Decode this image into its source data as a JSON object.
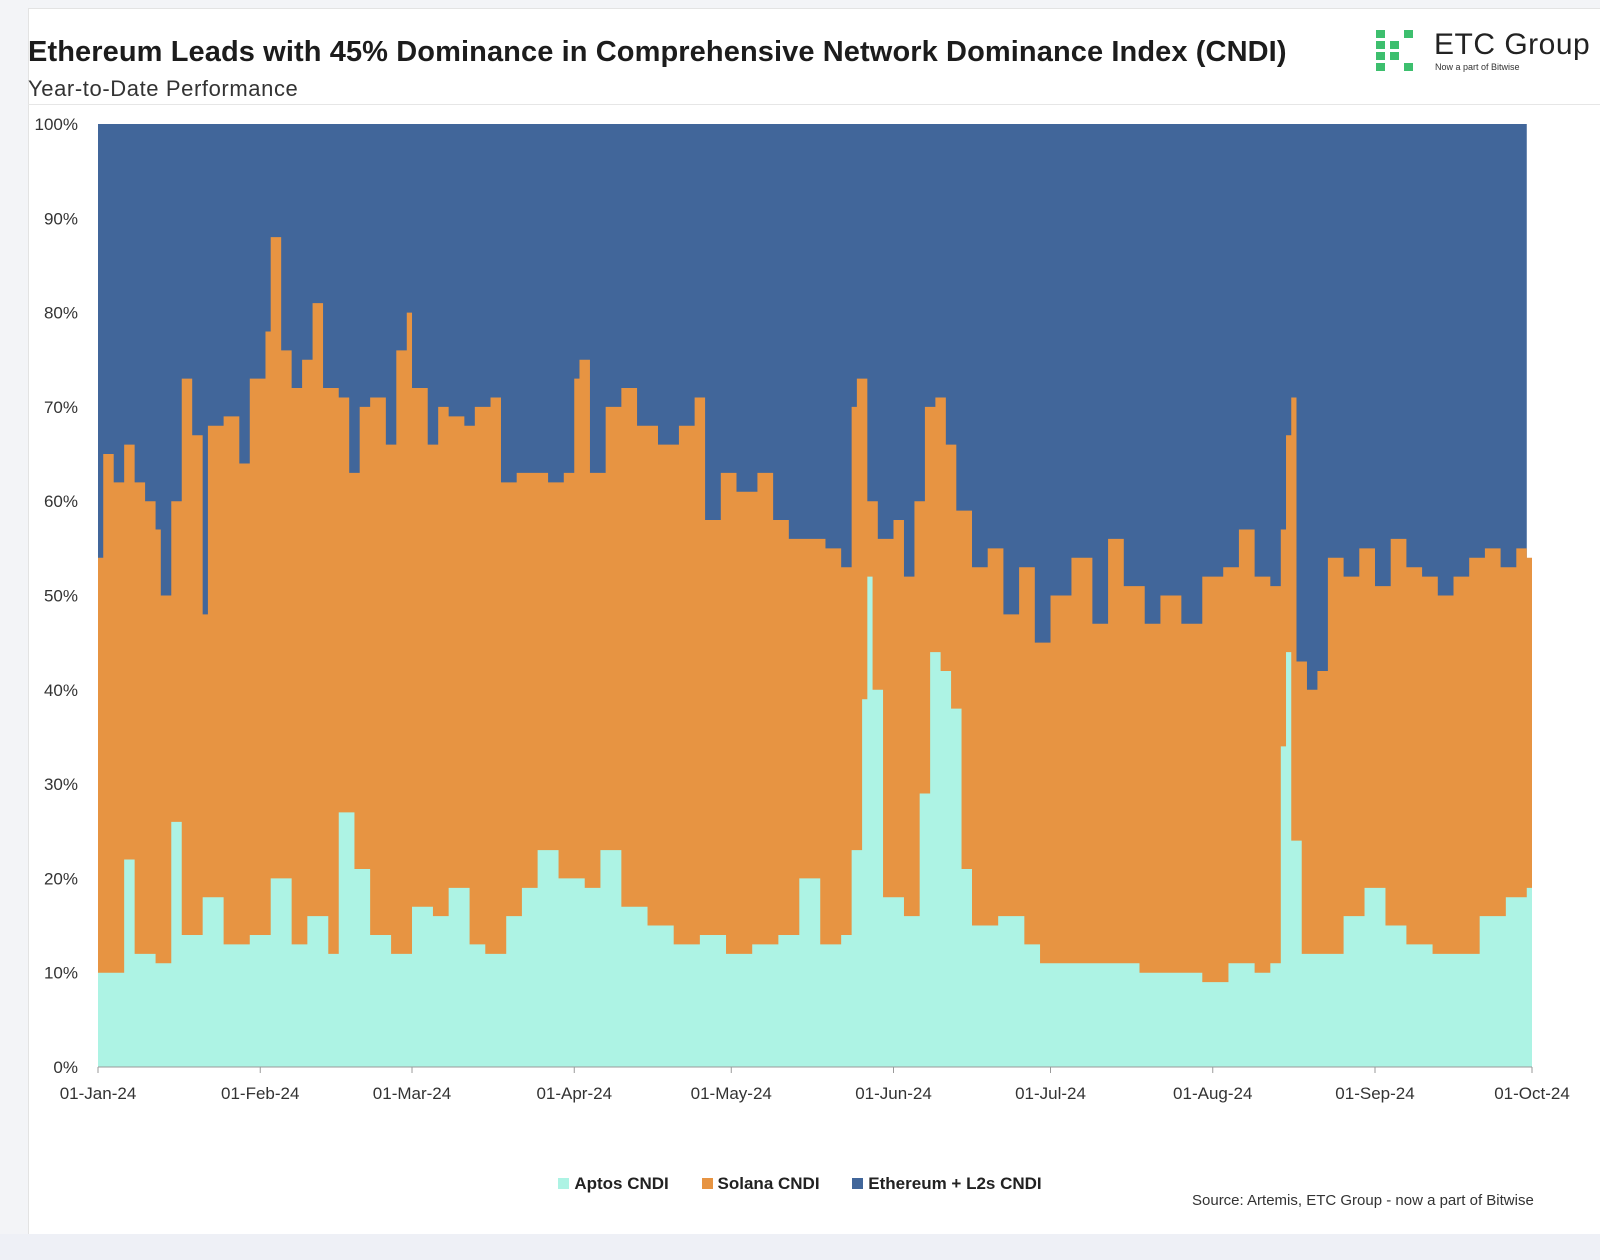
{
  "header": {
    "title": "Ethereum Leads with 45% Dominance in Comprehensive Network Dominance Index (CNDI)",
    "subtitle": "Year-to-Date Performance"
  },
  "logo": {
    "name": "ETC Group",
    "tagline": "Now a part of Bitwise",
    "accent_color": "#3dbf6e"
  },
  "source": "Source: Artemis, ETC Group - now a part of Bitwise",
  "colors": {
    "aptos": "#adf3e4",
    "solana": "#e79442",
    "ethereum": "#41669a"
  },
  "chart_data": {
    "type": "area",
    "stacked": true,
    "title": "Ethereum Leads with 45% Dominance in Comprehensive Network Dominance Index (CNDI)",
    "subtitle": "Year-to-Date Performance",
    "xlabel": "",
    "ylabel": "",
    "ylim": [
      0,
      100
    ],
    "y_ticks": [
      "0%",
      "10%",
      "20%",
      "30%",
      "40%",
      "50%",
      "60%",
      "70%",
      "80%",
      "90%",
      "100%"
    ],
    "x_range": [
      "2024-01-01",
      "2024-10-01"
    ],
    "x_ticks": [
      "01-Jan-24",
      "01-Feb-24",
      "01-Mar-24",
      "01-Apr-24",
      "01-May-24",
      "01-Jun-24",
      "01-Jul-24",
      "01-Aug-24",
      "01-Sep-24",
      "01-Oct-24"
    ],
    "legend_position": "bottom",
    "grid": false,
    "series": [
      {
        "name": "Aptos CNDI",
        "color": "#adf3e4",
        "points": [
          [
            "2024-01-01",
            10
          ],
          [
            "2024-01-06",
            22
          ],
          [
            "2024-01-08",
            12
          ],
          [
            "2024-01-12",
            11
          ],
          [
            "2024-01-15",
            26
          ],
          [
            "2024-01-17",
            14
          ],
          [
            "2024-01-21",
            18
          ],
          [
            "2024-01-25",
            13
          ],
          [
            "2024-01-30",
            14
          ],
          [
            "2024-02-03",
            20
          ],
          [
            "2024-02-07",
            13
          ],
          [
            "2024-02-10",
            16
          ],
          [
            "2024-02-14",
            12
          ],
          [
            "2024-02-16",
            27
          ],
          [
            "2024-02-19",
            21
          ],
          [
            "2024-02-22",
            14
          ],
          [
            "2024-02-26",
            12
          ],
          [
            "2024-03-01",
            17
          ],
          [
            "2024-03-05",
            16
          ],
          [
            "2024-03-08",
            19
          ],
          [
            "2024-03-12",
            13
          ],
          [
            "2024-03-15",
            12
          ],
          [
            "2024-03-19",
            16
          ],
          [
            "2024-03-22",
            19
          ],
          [
            "2024-03-25",
            23
          ],
          [
            "2024-03-29",
            20
          ],
          [
            "2024-04-03",
            19
          ],
          [
            "2024-04-06",
            23
          ],
          [
            "2024-04-10",
            17
          ],
          [
            "2024-04-15",
            15
          ],
          [
            "2024-04-20",
            13
          ],
          [
            "2024-04-25",
            14
          ],
          [
            "2024-04-30",
            12
          ],
          [
            "2024-05-05",
            13
          ],
          [
            "2024-05-10",
            14
          ],
          [
            "2024-05-14",
            20
          ],
          [
            "2024-05-18",
            13
          ],
          [
            "2024-05-22",
            14
          ],
          [
            "2024-05-24",
            23
          ],
          [
            "2024-05-26",
            39
          ],
          [
            "2024-05-27",
            52
          ],
          [
            "2024-05-28",
            40
          ],
          [
            "2024-05-30",
            18
          ],
          [
            "2024-06-03",
            16
          ],
          [
            "2024-06-06",
            29
          ],
          [
            "2024-06-08",
            44
          ],
          [
            "2024-06-10",
            42
          ],
          [
            "2024-06-12",
            38
          ],
          [
            "2024-06-14",
            21
          ],
          [
            "2024-06-16",
            15
          ],
          [
            "2024-06-21",
            16
          ],
          [
            "2024-06-26",
            13
          ],
          [
            "2024-06-29",
            11
          ],
          [
            "2024-07-05",
            11
          ],
          [
            "2024-07-12",
            11
          ],
          [
            "2024-07-18",
            10
          ],
          [
            "2024-07-24",
            10
          ],
          [
            "2024-07-30",
            9
          ],
          [
            "2024-08-04",
            11
          ],
          [
            "2024-08-09",
            10
          ],
          [
            "2024-08-12",
            11
          ],
          [
            "2024-08-14",
            34
          ],
          [
            "2024-08-15",
            44
          ],
          [
            "2024-08-16",
            24
          ],
          [
            "2024-08-18",
            12
          ],
          [
            "2024-08-22",
            12
          ],
          [
            "2024-08-26",
            16
          ],
          [
            "2024-08-30",
            19
          ],
          [
            "2024-09-03",
            15
          ],
          [
            "2024-09-07",
            13
          ],
          [
            "2024-09-12",
            12
          ],
          [
            "2024-09-17",
            12
          ],
          [
            "2024-09-21",
            16
          ],
          [
            "2024-09-26",
            18
          ],
          [
            "2024-09-30",
            19
          ]
        ]
      },
      {
        "name": "Solana CNDI",
        "color": "#e79442",
        "points": [
          [
            "2024-01-01",
            54
          ],
          [
            "2024-01-02",
            65
          ],
          [
            "2024-01-04",
            62
          ],
          [
            "2024-01-06",
            66
          ],
          [
            "2024-01-08",
            62
          ],
          [
            "2024-01-10",
            60
          ],
          [
            "2024-01-12",
            57
          ],
          [
            "2024-01-13",
            50
          ],
          [
            "2024-01-15",
            60
          ],
          [
            "2024-01-17",
            73
          ],
          [
            "2024-01-19",
            67
          ],
          [
            "2024-01-21",
            48
          ],
          [
            "2024-01-22",
            68
          ],
          [
            "2024-01-25",
            69
          ],
          [
            "2024-01-28",
            64
          ],
          [
            "2024-01-30",
            73
          ],
          [
            "2024-02-02",
            78
          ],
          [
            "2024-02-03",
            88
          ],
          [
            "2024-02-05",
            76
          ],
          [
            "2024-02-07",
            72
          ],
          [
            "2024-02-09",
            75
          ],
          [
            "2024-02-11",
            81
          ],
          [
            "2024-02-13",
            72
          ],
          [
            "2024-02-16",
            71
          ],
          [
            "2024-02-18",
            63
          ],
          [
            "2024-02-20",
            70
          ],
          [
            "2024-02-22",
            71
          ],
          [
            "2024-02-25",
            66
          ],
          [
            "2024-02-27",
            76
          ],
          [
            "2024-02-29",
            80
          ],
          [
            "2024-03-01",
            72
          ],
          [
            "2024-03-04",
            66
          ],
          [
            "2024-03-06",
            70
          ],
          [
            "2024-03-08",
            69
          ],
          [
            "2024-03-11",
            68
          ],
          [
            "2024-03-13",
            70
          ],
          [
            "2024-03-16",
            71
          ],
          [
            "2024-03-18",
            62
          ],
          [
            "2024-03-21",
            63
          ],
          [
            "2024-03-24",
            63
          ],
          [
            "2024-03-27",
            62
          ],
          [
            "2024-03-30",
            63
          ],
          [
            "2024-04-01",
            73
          ],
          [
            "2024-04-02",
            75
          ],
          [
            "2024-04-04",
            63
          ],
          [
            "2024-04-07",
            70
          ],
          [
            "2024-04-10",
            72
          ],
          [
            "2024-04-13",
            68
          ],
          [
            "2024-04-17",
            66
          ],
          [
            "2024-04-21",
            68
          ],
          [
            "2024-04-24",
            71
          ],
          [
            "2024-04-26",
            58
          ],
          [
            "2024-04-29",
            63
          ],
          [
            "2024-05-02",
            61
          ],
          [
            "2024-05-06",
            63
          ],
          [
            "2024-05-09",
            58
          ],
          [
            "2024-05-12",
            56
          ],
          [
            "2024-05-16",
            56
          ],
          [
            "2024-05-19",
            55
          ],
          [
            "2024-05-22",
            53
          ],
          [
            "2024-05-24",
            70
          ],
          [
            "2024-05-25",
            73
          ],
          [
            "2024-05-27",
            60
          ],
          [
            "2024-05-29",
            56
          ],
          [
            "2024-06-01",
            58
          ],
          [
            "2024-06-03",
            52
          ],
          [
            "2024-06-05",
            60
          ],
          [
            "2024-06-07",
            70
          ],
          [
            "2024-06-09",
            71
          ],
          [
            "2024-06-11",
            66
          ],
          [
            "2024-06-13",
            59
          ],
          [
            "2024-06-16",
            53
          ],
          [
            "2024-06-19",
            55
          ],
          [
            "2024-06-22",
            48
          ],
          [
            "2024-06-25",
            53
          ],
          [
            "2024-06-28",
            45
          ],
          [
            "2024-07-01",
            50
          ],
          [
            "2024-07-05",
            54
          ],
          [
            "2024-07-09",
            47
          ],
          [
            "2024-07-12",
            56
          ],
          [
            "2024-07-15",
            51
          ],
          [
            "2024-07-19",
            47
          ],
          [
            "2024-07-22",
            50
          ],
          [
            "2024-07-26",
            47
          ],
          [
            "2024-07-30",
            52
          ],
          [
            "2024-08-03",
            53
          ],
          [
            "2024-08-06",
            57
          ],
          [
            "2024-08-09",
            52
          ],
          [
            "2024-08-12",
            51
          ],
          [
            "2024-08-14",
            57
          ],
          [
            "2024-08-15",
            67
          ],
          [
            "2024-08-16",
            71
          ],
          [
            "2024-08-17",
            43
          ],
          [
            "2024-08-19",
            40
          ],
          [
            "2024-08-21",
            42
          ],
          [
            "2024-08-23",
            54
          ],
          [
            "2024-08-26",
            52
          ],
          [
            "2024-08-29",
            55
          ],
          [
            "2024-09-01",
            51
          ],
          [
            "2024-09-04",
            56
          ],
          [
            "2024-09-07",
            53
          ],
          [
            "2024-09-10",
            52
          ],
          [
            "2024-09-13",
            50
          ],
          [
            "2024-09-16",
            52
          ],
          [
            "2024-09-19",
            54
          ],
          [
            "2024-09-22",
            55
          ],
          [
            "2024-09-25",
            53
          ],
          [
            "2024-09-28",
            55
          ],
          [
            "2024-09-30",
            54
          ]
        ]
      },
      {
        "name": "Ethereum + L2s CNDI",
        "color": "#41669a",
        "points": [
          [
            "2024-01-01",
            100
          ],
          [
            "2024-09-30",
            100
          ]
        ]
      }
    ]
  }
}
